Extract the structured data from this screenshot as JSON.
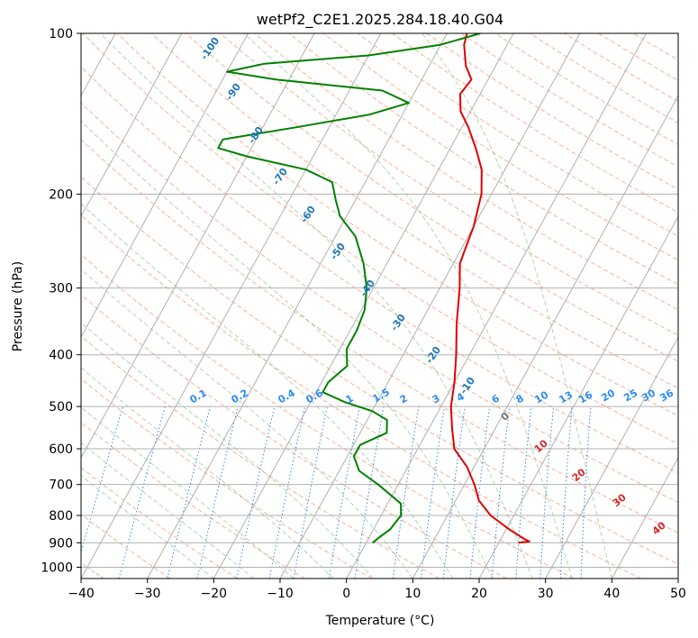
{
  "chart_data": {
    "type": "line",
    "title": "wetPf2_C2E1.2025.284.18.40.G04",
    "xlabel": "Temperature (°C)",
    "ylabel": "Pressure (hPa)",
    "xlim": [
      -40,
      50
    ],
    "ylim": [
      1050,
      100
    ],
    "y_scale": "log",
    "grid": true,
    "x_ticks": [
      -40,
      -30,
      -20,
      -10,
      0,
      10,
      20,
      30,
      40,
      50
    ],
    "y_ticks": [
      100,
      200,
      300,
      400,
      500,
      600,
      700,
      800,
      900,
      1000
    ],
    "series": [
      {
        "color": "#e00000",
        "points": [
          {
            "p": 900,
            "t": 23
          },
          {
            "p": 895,
            "t": 24.5
          },
          {
            "p": 885,
            "t": 23.5
          },
          {
            "p": 850,
            "t": 20.5
          },
          {
            "p": 800,
            "t": 16.5
          },
          {
            "p": 750,
            "t": 13.5
          },
          {
            "p": 700,
            "t": 11.5
          },
          {
            "p": 650,
            "t": 9
          },
          {
            "p": 600,
            "t": 5.5
          },
          {
            "p": 550,
            "t": 3.5
          },
          {
            "p": 500,
            "t": 1.5
          },
          {
            "p": 450,
            "t": 0
          },
          {
            "p": 400,
            "t": -2
          },
          {
            "p": 350,
            "t": -4.5
          },
          {
            "p": 300,
            "t": -7
          },
          {
            "p": 270,
            "t": -9
          },
          {
            "p": 250,
            "t": -9.5
          },
          {
            "p": 230,
            "t": -10
          },
          {
            "p": 200,
            "t": -11.5
          },
          {
            "p": 180,
            "t": -13.5
          },
          {
            "p": 165,
            "t": -16
          },
          {
            "p": 150,
            "t": -19
          },
          {
            "p": 140,
            "t": -21.5
          },
          {
            "p": 130,
            "t": -23
          },
          {
            "p": 122,
            "t": -22.5
          },
          {
            "p": 115,
            "t": -24.5
          },
          {
            "p": 105,
            "t": -26.5
          },
          {
            "p": 100,
            "t": -27
          }
        ]
      },
      {
        "color": "#008000",
        "points": [
          {
            "p": 900,
            "t": 1
          },
          {
            "p": 880,
            "t": 1.5
          },
          {
            "p": 850,
            "t": 2.5
          },
          {
            "p": 800,
            "t": 3
          },
          {
            "p": 760,
            "t": 2
          },
          {
            "p": 700,
            "t": -3
          },
          {
            "p": 660,
            "t": -7
          },
          {
            "p": 620,
            "t": -9
          },
          {
            "p": 590,
            "t": -9
          },
          {
            "p": 560,
            "t": -6
          },
          {
            "p": 530,
            "t": -7
          },
          {
            "p": 510,
            "t": -10
          },
          {
            "p": 490,
            "t": -15
          },
          {
            "p": 470,
            "t": -19
          },
          {
            "p": 450,
            "t": -19
          },
          {
            "p": 420,
            "t": -17.5
          },
          {
            "p": 390,
            "t": -19
          },
          {
            "p": 360,
            "t": -19
          },
          {
            "p": 330,
            "t": -19.5
          },
          {
            "p": 300,
            "t": -21
          },
          {
            "p": 270,
            "t": -23.5
          },
          {
            "p": 240,
            "t": -27
          },
          {
            "p": 220,
            "t": -31
          },
          {
            "p": 205,
            "t": -33
          },
          {
            "p": 190,
            "t": -35
          },
          {
            "p": 180,
            "t": -40
          },
          {
            "p": 170,
            "t": -50
          },
          {
            "p": 164,
            "t": -55
          },
          {
            "p": 158,
            "t": -55
          },
          {
            "p": 150,
            "t": -45
          },
          {
            "p": 142,
            "t": -35
          },
          {
            "p": 135,
            "t": -30
          },
          {
            "p": 128,
            "t": -35
          },
          {
            "p": 122,
            "t": -52
          },
          {
            "p": 118,
            "t": -60
          },
          {
            "p": 114,
            "t": -55
          },
          {
            "p": 110,
            "t": -40
          },
          {
            "p": 105,
            "t": -30
          },
          {
            "p": 100,
            "t": -25
          }
        ]
      }
    ],
    "dry_adiabat_labels": [
      "-100",
      "-90",
      "-80",
      "-70",
      "-60",
      "-50",
      "-40",
      "-30",
      "-20",
      "-10"
    ],
    "mixing_ratio_labels": [
      "0.1",
      "0.2",
      "0.4",
      "0.6",
      "1",
      "1.5",
      "2",
      "3",
      "4",
      "6",
      "8",
      "10",
      "13",
      "16",
      "20",
      "25",
      "30",
      "36"
    ],
    "moist_adiabat_labels": [
      "0",
      "10",
      "20",
      "30",
      "40"
    ]
  }
}
